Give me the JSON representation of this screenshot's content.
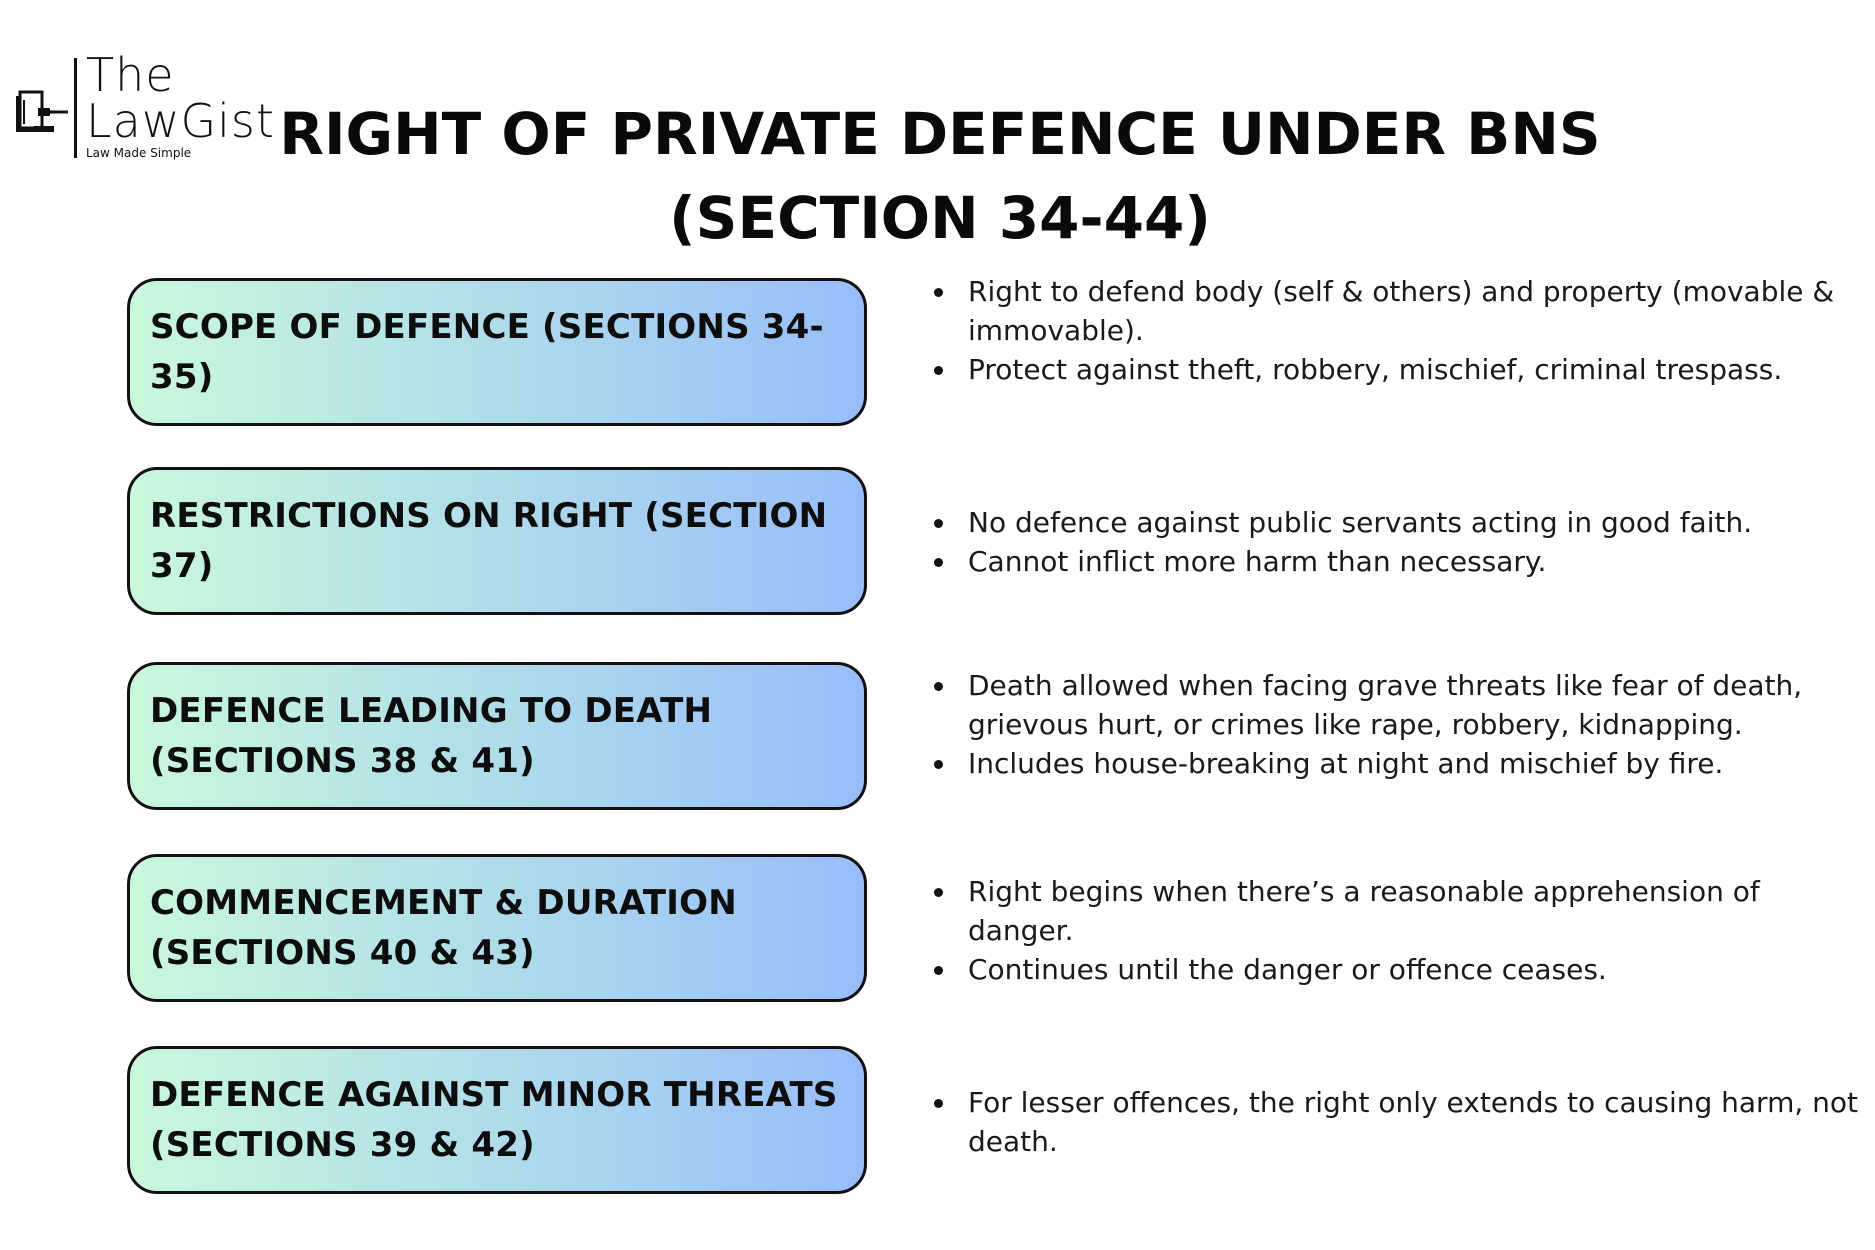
{
  "logo": {
    "line1": "The",
    "line2": "LawGist",
    "tagline": "Law Made Simple"
  },
  "title": "RIGHT OF PRIVATE DEFENCE UNDER BNS (SECTION 34-44)",
  "colors": {
    "box_gradient_start": "#caf8dc",
    "box_gradient_end": "#98bdfa",
    "border": "#111111"
  },
  "sections": [
    {
      "label": "SCOPE OF DEFENCE (SECTIONS 34-35)",
      "points": [
        "Right to defend body (self & others) and property (movable & immovable).",
        "Protect against theft, robbery, mischief, criminal trespass."
      ]
    },
    {
      "label": "RESTRICTIONS ON RIGHT (SECTION 37)",
      "points": [
        "No defence against public servants acting in good faith.",
        "Cannot inflict more harm than necessary."
      ]
    },
    {
      "label": "DEFENCE LEADING TO DEATH (SECTIONS 38 & 41)",
      "points": [
        "Death allowed when facing grave threats like fear of death, grievous hurt, or crimes like rape, robbery, kidnapping.",
        "Includes house-breaking at night and mischief by fire."
      ]
    },
    {
      "label": "COMMENCEMENT & DURATION (SECTIONS 40 & 43)",
      "points": [
        "Right begins when there’s a reasonable apprehension of danger.",
        "Continues until the danger or offence ceases."
      ]
    },
    {
      "label": "DEFENCE AGAINST MINOR THREATS (SECTIONS 39 & 42)",
      "points": [
        "For lesser offences, the right only extends to causing harm, not death."
      ]
    }
  ]
}
